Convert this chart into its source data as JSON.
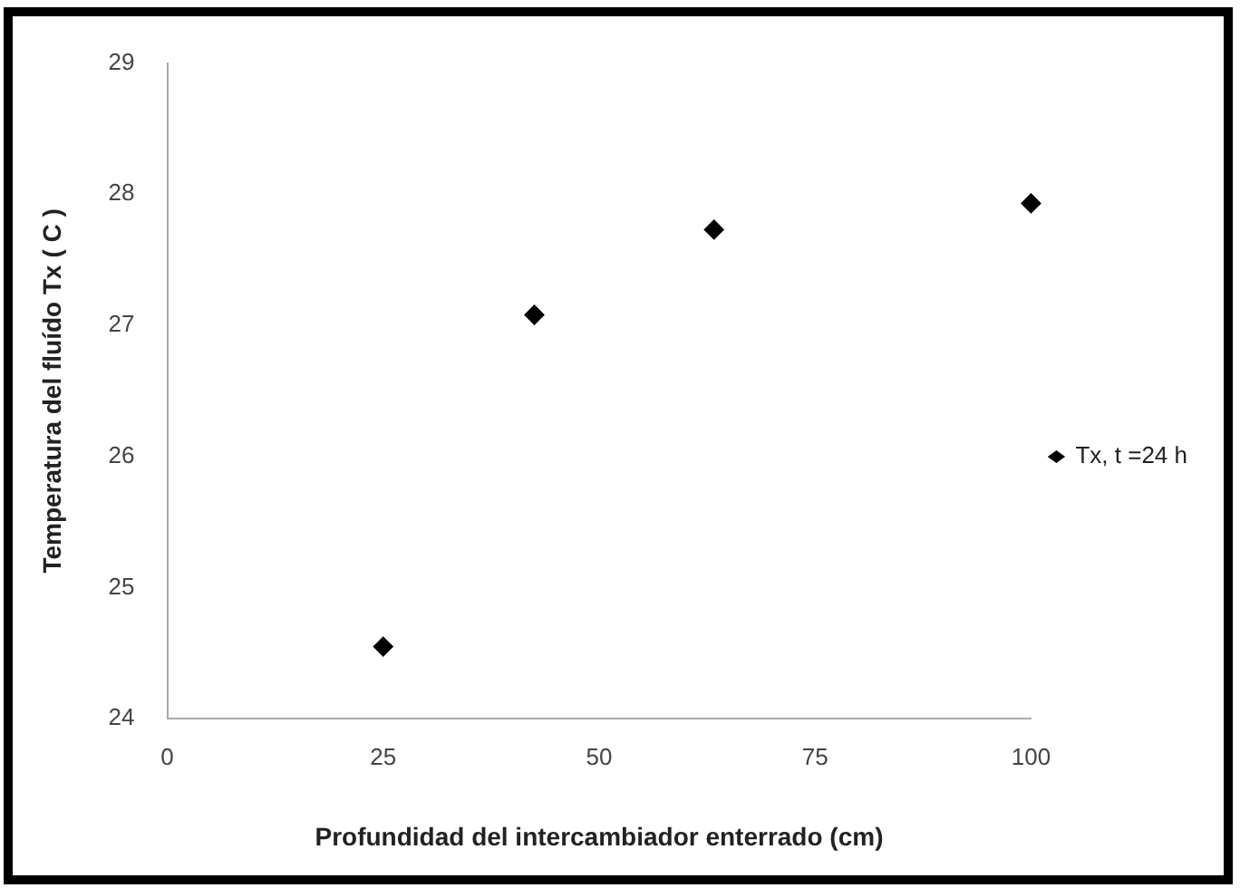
{
  "chart_data": {
    "type": "scatter",
    "xlabel": "Profundidad del intercambiador enterrado (cm)",
    "ylabel": "Temperatura del fluído Tx ( C )",
    "series": [
      {
        "name": "Tx, t =24 h",
        "color": "#000000",
        "x": [
          25,
          42.5,
          63.3,
          100
        ],
        "values": [
          24.55,
          27.08,
          27.73,
          27.93
        ]
      }
    ],
    "xlim": [
      0,
      100
    ],
    "xticks": [
      0,
      25,
      50,
      75,
      100
    ],
    "ylim": [
      24,
      29
    ],
    "yticks": [
      24,
      25,
      26,
      27,
      28,
      29
    ],
    "grid": false,
    "legend": "right",
    "marker": "diamond"
  }
}
